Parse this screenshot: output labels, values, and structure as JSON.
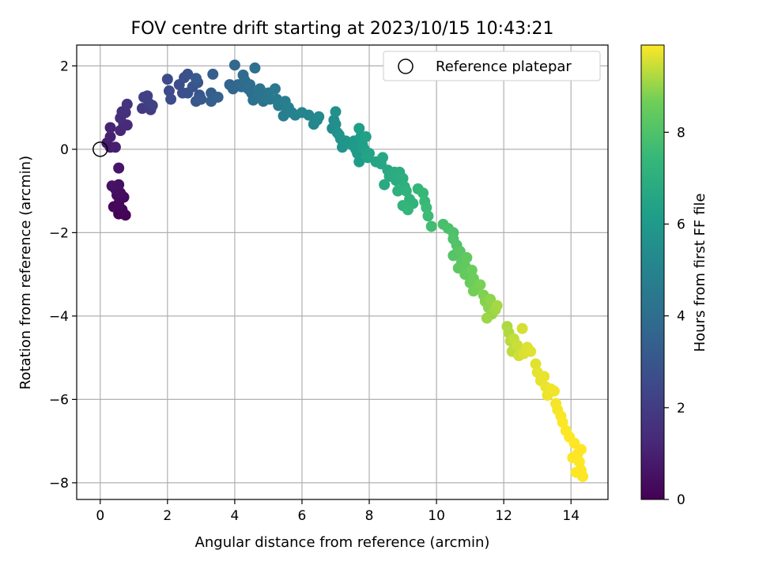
{
  "chart_data": {
    "type": "scatter",
    "title": "FOV centre drift starting at 2023/10/15 10:43:21",
    "xlabel": "Angular distance from reference (arcmin)",
    "ylabel": "Rotation from reference (arcmin)",
    "xlim": [
      -0.7,
      15.1
    ],
    "ylim": [
      -8.4,
      2.5
    ],
    "xticks": [
      0,
      2,
      4,
      6,
      8,
      10,
      12,
      14
    ],
    "yticks": [
      -8,
      -6,
      -4,
      -2,
      0,
      2
    ],
    "grid": true,
    "legend": {
      "position": "top-right",
      "entries": [
        "Reference platepar"
      ]
    },
    "reference_point": {
      "x": 0,
      "y": 0
    },
    "colorbar": {
      "label": "Hours from first FF file",
      "range": [
        0,
        9.9
      ],
      "ticks": [
        0,
        2,
        4,
        6,
        8
      ],
      "colormap": "viridis"
    },
    "points": [
      [
        0.55,
        -1.55,
        0.05
      ],
      [
        0.75,
        -1.58,
        0.1
      ],
      [
        0.65,
        -1.45,
        0.15
      ],
      [
        0.4,
        -1.38,
        0.2
      ],
      [
        0.55,
        -1.3,
        0.25
      ],
      [
        0.7,
        -1.15,
        0.3
      ],
      [
        0.5,
        -1.1,
        0.35
      ],
      [
        0.6,
        -1.05,
        0.4
      ],
      [
        0.45,
        -0.95,
        0.45
      ],
      [
        0.55,
        -0.85,
        0.5
      ],
      [
        0.35,
        -0.88,
        0.55
      ],
      [
        0.55,
        -0.45,
        0.65
      ],
      [
        0.3,
        0.05,
        0.85
      ],
      [
        0.2,
        0.15,
        0.9
      ],
      [
        0.45,
        0.05,
        0.95
      ],
      [
        0.3,
        0.3,
        1.0
      ],
      [
        0.3,
        0.52,
        1.1
      ],
      [
        0.6,
        0.45,
        1.2
      ],
      [
        0.7,
        0.6,
        1.3
      ],
      [
        0.8,
        0.58,
        1.35
      ],
      [
        0.6,
        0.75,
        1.45
      ],
      [
        0.75,
        0.88,
        1.5
      ],
      [
        0.65,
        0.9,
        1.55
      ],
      [
        0.8,
        1.08,
        1.7
      ],
      [
        1.25,
        0.98,
        1.9
      ],
      [
        1.5,
        0.95,
        2.0
      ],
      [
        1.45,
        1.1,
        2.05
      ],
      [
        1.3,
        1.25,
        2.1
      ],
      [
        1.4,
        1.28,
        2.15
      ],
      [
        1.55,
        1.05,
        2.2
      ],
      [
        2.05,
        1.4,
        2.5
      ],
      [
        2.0,
        1.68,
        2.55
      ],
      [
        2.1,
        1.2,
        2.6
      ],
      [
        2.35,
        1.55,
        2.65
      ],
      [
        2.45,
        1.35,
        2.7
      ],
      [
        2.5,
        1.72,
        2.75
      ],
      [
        2.6,
        1.8,
        2.8
      ],
      [
        2.6,
        1.35,
        2.85
      ],
      [
        2.75,
        1.5,
        2.9
      ],
      [
        2.9,
        1.6,
        2.95
      ],
      [
        2.95,
        1.3,
        3.0
      ],
      [
        2.85,
        1.15,
        3.05
      ],
      [
        3.0,
        1.2,
        3.1
      ],
      [
        2.85,
        1.7,
        3.15
      ],
      [
        3.3,
        1.35,
        3.3
      ],
      [
        3.35,
        1.8,
        3.35
      ],
      [
        3.3,
        1.15,
        3.4
      ],
      [
        3.5,
        1.25,
        3.45
      ],
      [
        3.85,
        1.55,
        3.6
      ],
      [
        3.95,
        1.45,
        3.65
      ],
      [
        4.0,
        2.02,
        3.7
      ],
      [
        4.1,
        1.55,
        3.75
      ],
      [
        4.2,
        1.5,
        3.8
      ],
      [
        4.25,
        1.78,
        3.85
      ],
      [
        4.3,
        1.65,
        3.9
      ],
      [
        4.4,
        1.45,
        3.95
      ],
      [
        4.5,
        1.35,
        4.0
      ],
      [
        4.45,
        1.55,
        4.05
      ],
      [
        4.6,
        1.95,
        4.1
      ],
      [
        4.55,
        1.18,
        4.15
      ],
      [
        4.7,
        1.3,
        4.2
      ],
      [
        4.75,
        1.45,
        4.25
      ],
      [
        4.85,
        1.15,
        4.3
      ],
      [
        4.95,
        1.25,
        4.35
      ],
      [
        5.0,
        1.35,
        4.4
      ],
      [
        5.05,
        1.2,
        4.45
      ],
      [
        5.2,
        1.45,
        4.5
      ],
      [
        5.25,
        1.2,
        4.55
      ],
      [
        5.3,
        1.05,
        4.6
      ],
      [
        5.45,
        0.8,
        4.7
      ],
      [
        5.5,
        1.15,
        4.75
      ],
      [
        5.55,
        0.95,
        4.8
      ],
      [
        5.6,
        1.0,
        4.85
      ],
      [
        5.7,
        0.88,
        4.9
      ],
      [
        5.8,
        0.82,
        4.95
      ],
      [
        6.0,
        0.88,
        5.05
      ],
      [
        6.2,
        0.82,
        5.1
      ],
      [
        6.35,
        0.6,
        5.15
      ],
      [
        6.45,
        0.7,
        5.2
      ],
      [
        6.5,
        0.78,
        5.25
      ],
      [
        6.9,
        0.5,
        5.4
      ],
      [
        6.95,
        0.7,
        5.45
      ],
      [
        7.0,
        0.6,
        5.5
      ],
      [
        7.05,
        0.4,
        5.55
      ],
      [
        7.0,
        0.9,
        5.6
      ],
      [
        7.1,
        0.35,
        5.65
      ],
      [
        7.15,
        0.25,
        5.7
      ],
      [
        7.2,
        0.05,
        5.75
      ],
      [
        7.3,
        0.2,
        5.8
      ],
      [
        7.4,
        0.15,
        5.85
      ],
      [
        7.5,
        0.1,
        5.9
      ],
      [
        7.55,
        0.2,
        5.95
      ],
      [
        7.6,
        0.0,
        6.0
      ],
      [
        7.65,
        -0.1,
        6.05
      ],
      [
        7.7,
        -0.3,
        6.1
      ],
      [
        7.75,
        0.3,
        6.15
      ],
      [
        7.7,
        0.5,
        6.2
      ],
      [
        7.8,
        0.1,
        6.25
      ],
      [
        7.85,
        0.0,
        6.3
      ],
      [
        7.9,
        0.3,
        6.35
      ],
      [
        7.95,
        -0.2,
        6.4
      ],
      [
        8.0,
        -0.1,
        6.45
      ],
      [
        8.2,
        -0.3,
        6.55
      ],
      [
        8.35,
        -0.35,
        6.6
      ],
      [
        8.4,
        -0.2,
        6.65
      ],
      [
        8.55,
        -0.5,
        6.7
      ],
      [
        8.45,
        -0.85,
        6.75
      ],
      [
        8.6,
        -0.65,
        6.8
      ],
      [
        8.75,
        -0.55,
        6.85
      ],
      [
        8.8,
        -0.75,
        6.9
      ],
      [
        8.9,
        -0.55,
        6.95
      ],
      [
        9.0,
        -0.7,
        7.0
      ],
      [
        9.05,
        -0.9,
        7.05
      ],
      [
        8.85,
        -1.0,
        7.1
      ],
      [
        9.1,
        -1.0,
        7.15
      ],
      [
        9.2,
        -1.2,
        7.2
      ],
      [
        9.3,
        -1.3,
        7.25
      ],
      [
        9.0,
        -1.35,
        7.3
      ],
      [
        9.15,
        -1.45,
        7.35
      ],
      [
        9.45,
        -0.95,
        7.4
      ],
      [
        9.6,
        -1.05,
        7.45
      ],
      [
        9.65,
        -1.25,
        7.5
      ],
      [
        9.7,
        -1.4,
        7.55
      ],
      [
        9.75,
        -1.6,
        7.6
      ],
      [
        9.85,
        -1.85,
        7.7
      ],
      [
        10.2,
        -1.8,
        7.85
      ],
      [
        10.35,
        -1.9,
        7.9
      ],
      [
        10.5,
        -2.0,
        7.95
      ],
      [
        10.5,
        -2.15,
        8.0
      ],
      [
        10.6,
        -2.3,
        8.05
      ],
      [
        10.5,
        -2.55,
        8.1
      ],
      [
        10.6,
        -2.5,
        8.15
      ],
      [
        10.7,
        -2.45,
        8.2
      ],
      [
        10.75,
        -2.7,
        8.25
      ],
      [
        10.65,
        -2.85,
        8.3
      ],
      [
        10.85,
        -2.8,
        8.35
      ],
      [
        10.9,
        -2.6,
        8.4
      ],
      [
        10.85,
        -3.0,
        8.45
      ],
      [
        11.0,
        -3.2,
        8.5
      ],
      [
        11.05,
        -2.9,
        8.55
      ],
      [
        11.1,
        -3.1,
        8.6
      ],
      [
        11.2,
        -3.3,
        8.65
      ],
      [
        11.1,
        -3.4,
        8.7
      ],
      [
        11.3,
        -3.25,
        8.75
      ],
      [
        11.4,
        -3.5,
        8.8
      ],
      [
        11.45,
        -3.65,
        8.85
      ],
      [
        11.55,
        -3.8,
        8.9
      ],
      [
        11.6,
        -3.6,
        8.95
      ],
      [
        11.65,
        -3.95,
        9.0
      ],
      [
        11.5,
        -4.05,
        9.05
      ],
      [
        11.75,
        -3.85,
        9.1
      ],
      [
        11.8,
        -3.75,
        9.15
      ],
      [
        12.1,
        -4.25,
        9.2
      ],
      [
        12.15,
        -4.4,
        9.25
      ],
      [
        12.2,
        -4.6,
        9.3
      ],
      [
        12.25,
        -4.85,
        9.35
      ],
      [
        12.3,
        -4.55,
        9.4
      ],
      [
        12.4,
        -4.7,
        9.45
      ],
      [
        12.45,
        -4.95,
        9.5
      ],
      [
        12.55,
        -4.3,
        9.55
      ],
      [
        12.6,
        -4.9,
        9.6
      ],
      [
        12.7,
        -4.75,
        9.62
      ],
      [
        12.8,
        -4.85,
        9.64
      ],
      [
        12.95,
        -5.15,
        9.66
      ],
      [
        13.0,
        -5.35,
        9.68
      ],
      [
        13.1,
        -5.55,
        9.7
      ],
      [
        13.2,
        -5.45,
        9.72
      ],
      [
        13.25,
        -5.7,
        9.74
      ],
      [
        13.3,
        -5.9,
        9.76
      ],
      [
        13.4,
        -5.75,
        9.78
      ],
      [
        13.5,
        -5.8,
        9.8
      ],
      [
        13.55,
        -6.1,
        9.82
      ],
      [
        13.6,
        -6.25,
        9.84
      ],
      [
        13.7,
        -6.4,
        9.86
      ],
      [
        13.75,
        -6.55,
        9.88
      ],
      [
        13.85,
        -6.75,
        9.89
      ],
      [
        13.95,
        -6.9,
        9.9
      ],
      [
        14.1,
        -7.05,
        9.9
      ],
      [
        14.2,
        -7.3,
        9.9
      ],
      [
        14.25,
        -7.5,
        9.9
      ],
      [
        14.3,
        -7.7,
        9.9
      ],
      [
        14.35,
        -7.85,
        9.9
      ],
      [
        14.05,
        -7.4,
        9.9
      ],
      [
        14.15,
        -7.75,
        9.9
      ],
      [
        14.3,
        -7.2,
        9.9
      ]
    ]
  }
}
